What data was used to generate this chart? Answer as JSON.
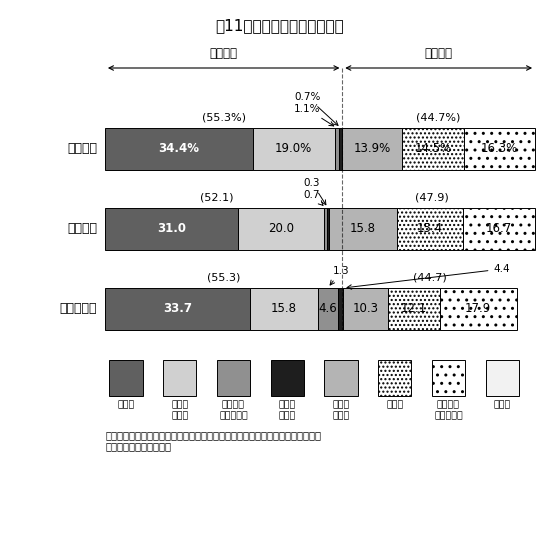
{
  "title": "第11図　歳入決算額の構成比",
  "rows": [
    {
      "label": "純　　計",
      "values": [
        34.4,
        19.0,
        1.1,
        0.7,
        13.9,
        14.5,
        16.3
      ],
      "label_texts": [
        "34.4%",
        "19.0%",
        "",
        "",
        "13.9%",
        "14.5%",
        "16.3%"
      ],
      "general_pct": "(55.3%)",
      "specific_pct": "(44.7%)"
    },
    {
      "label": "都道府県",
      "values": [
        31.0,
        20.0,
        0.7,
        0.3,
        15.8,
        15.4,
        16.7
      ],
      "label_texts": [
        "31.0",
        "20.0",
        "",
        "",
        "15.8",
        "15.4",
        "16.7"
      ],
      "general_pct": "(52.1)",
      "specific_pct": "(47.9)"
    },
    {
      "label": "市　町　村",
      "values": [
        33.7,
        15.8,
        4.6,
        1.3,
        10.3,
        12.1,
        17.9
      ],
      "label_texts": [
        "33.7",
        "15.8",
        "4.6",
        "",
        "10.3",
        "12.1",
        "17.9"
      ],
      "general_pct": "(55.3)",
      "specific_pct": "(44.7)"
    }
  ],
  "general_label": "一般財源",
  "specific_label": "特定財源",
  "seg_colors": [
    "#606060",
    "#d0d0d0",
    "#909090",
    "#1e1e1e",
    "#b0b0b0",
    "hatch1",
    "hatch2",
    "#f0f0f0"
  ],
  "legend_line1": [
    "地方税",
    "地　方",
    "地方特例",
    "地方議",
    "国　庫",
    "地方債",
    "都道府県",
    "その他"
  ],
  "legend_line2": [
    "",
    "交付税",
    "交　付　金",
    "与税等",
    "支出金",
    "",
    "支　出　金",
    ""
  ],
  "note": "（注）国庫支出金には、交通安全対策特別交付金及び国有提供施設等所在市町村\n　　助成交付金を含む。",
  "ann_row0": [
    [
      "0.7%",
      3,
      "top"
    ],
    [
      "1.1%",
      2,
      "top"
    ]
  ],
  "ann_row1": [
    [
      "0.3",
      3,
      "top"
    ],
    [
      "0.7",
      2,
      "top"
    ]
  ],
  "ann_row2_left": "1.3",
  "ann_row2_right": "4.4"
}
